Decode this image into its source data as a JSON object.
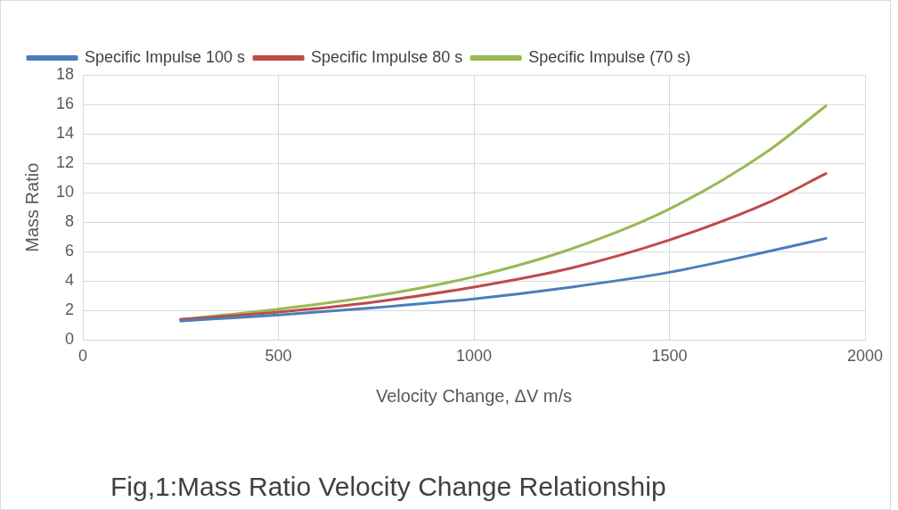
{
  "chart_data": {
    "type": "line",
    "xlabel": "Velocity Change, ΔV m/s",
    "ylabel": "Mass Ratio",
    "annotations": [
      "Fig,1:Mass Ratio Velocity Change Relationship"
    ],
    "x": [
      250,
      500,
      750,
      1000,
      1250,
      1500,
      1750,
      1900
    ],
    "series": [
      {
        "name": "Specific Impulse 100 s",
        "color": "#4a7ebb",
        "values": [
          1.3,
          1.7,
          2.2,
          2.8,
          3.6,
          4.6,
          6.0,
          6.9
        ]
      },
      {
        "name": "Specific Impulse 80 s",
        "color": "#be4b48",
        "values": [
          1.4,
          1.9,
          2.6,
          3.6,
          4.9,
          6.8,
          9.3,
          11.3
        ]
      },
      {
        "name": "Specific Impulse (70 s)",
        "color": "#98b954",
        "values": [
          1.4,
          2.1,
          3.0,
          4.3,
          6.2,
          8.9,
          12.8,
          15.9
        ]
      }
    ],
    "xlim": [
      0,
      2000
    ],
    "xticks": [
      0,
      500,
      1000,
      1500,
      2000
    ],
    "ylim": [
      0,
      18
    ],
    "yticks": [
      0,
      2,
      4,
      6,
      8,
      10,
      12,
      14,
      16,
      18
    ],
    "grid": true,
    "legend": "top",
    "marker": "none",
    "line_style": "solid"
  }
}
